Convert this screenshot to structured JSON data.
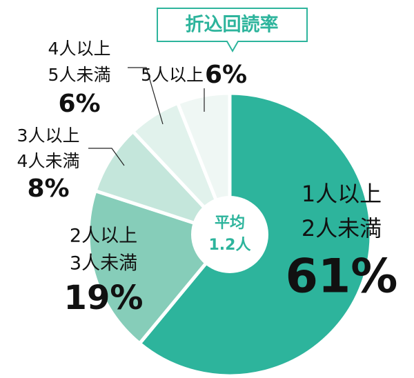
{
  "chart_data": {
    "type": "pie",
    "title": "折込回読率",
    "center_label": [
      "平均",
      "1.2人"
    ],
    "categories": [
      [
        "1人以上",
        "2人未満"
      ],
      [
        "2人以上",
        "3人未満"
      ],
      [
        "3人以上",
        "4人未満"
      ],
      [
        "4人以上",
        "5人未満"
      ],
      [
        "5人以上"
      ]
    ],
    "values": [
      61,
      19,
      8,
      6,
      6
    ],
    "value_labels": [
      "61%",
      "19%",
      "8%",
      "6%",
      "6%"
    ],
    "colors": [
      "#2db49c",
      "#86cdb9",
      "#c4e6db",
      "#e1f2ec",
      "#eff7f4"
    ]
  }
}
